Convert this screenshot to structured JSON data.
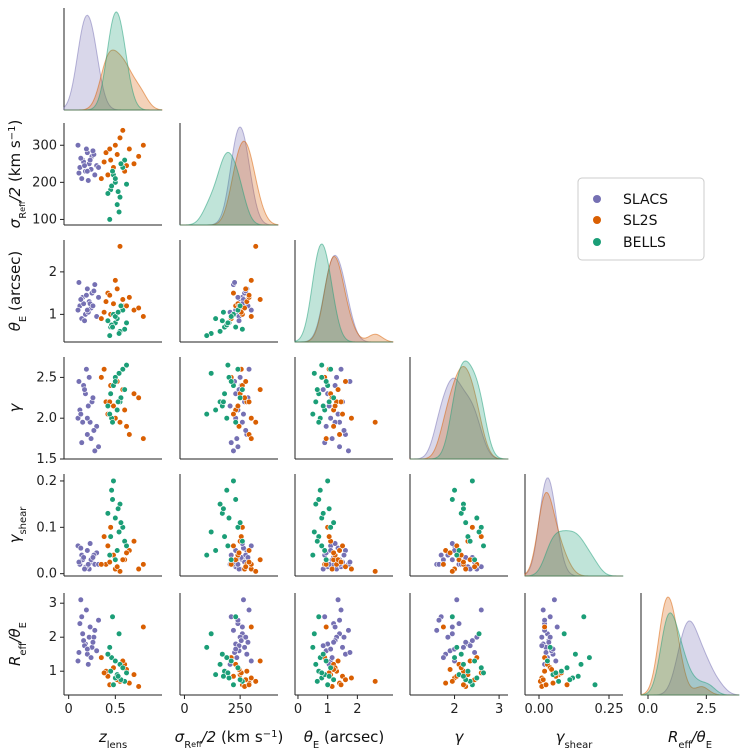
{
  "chart_data": {
    "type": "scatter",
    "title": "",
    "kind": "corner pair plot with KDE diagonals",
    "legend": {
      "placement": "right",
      "entries": [
        "SLACS",
        "SL2S",
        "BELLS"
      ]
    },
    "colors": {
      "SLACS": "#7570b3",
      "SL2S": "#d95f02",
      "BELLS": "#1b9e77"
    },
    "variables": [
      {
        "key": "z",
        "label_base": "z",
        "label_sub": "lens",
        "range": [
          -0.05,
          1.0
        ],
        "ticks": [
          0,
          0.5
        ],
        "tick_labels": [
          "0",
          "0.5"
        ]
      },
      {
        "key": "sigma",
        "label_base": "σ",
        "label_sub": "R",
        "label_subsub": "eff",
        "label_after": "/2",
        "label_unit": " (km s",
        "label_sup": "−1",
        "label_close": ")",
        "range": [
          -20,
          420
        ],
        "ticks": [
          0,
          250
        ],
        "tick_labels": [
          "0",
          "250"
        ],
        "ytick_values": [
          100,
          200,
          300
        ],
        "ytick_labels": [
          "100",
          "200",
          "300"
        ],
        "yrange": [
          85,
          360
        ]
      },
      {
        "key": "theta",
        "label_base": "θ",
        "label_sub": "E",
        "label_unit": " (arcsec)",
        "range": [
          -0.1,
          3.2
        ],
        "ticks": [
          0,
          1,
          2
        ],
        "tick_labels": [
          "0",
          "1",
          "2"
        ],
        "ytick_values": [
          1,
          2
        ],
        "ytick_labels": [
          "1",
          "2"
        ],
        "yrange": [
          0.35,
          2.75
        ]
      },
      {
        "key": "gamma",
        "label_base": "γ",
        "range": [
          1.0,
          3.2
        ],
        "ticks": [
          2,
          3
        ],
        "tick_labels": [
          "2",
          "3"
        ],
        "ytick_values": [
          1.5,
          2.0,
          2.5
        ],
        "ytick_labels": [
          "1.5",
          "2.0",
          "2.5"
        ],
        "yrange": [
          1.5,
          2.75
        ]
      },
      {
        "key": "shear",
        "label_base": "γ",
        "label_sub": "shear",
        "range": [
          -0.05,
          0.3
        ],
        "ticks": [
          0.0,
          0.25
        ],
        "tick_labels": [
          "0.00",
          "0.25"
        ],
        "ytick_values": [
          0.0,
          0.1,
          0.2
        ],
        "ytick_labels": [
          "0.0",
          "0.1",
          "0.2"
        ],
        "yrange": [
          -0.005,
          0.215
        ]
      },
      {
        "key": "ratio",
        "label_base": "R",
        "label_sub": "eff",
        "label_after": "/θ",
        "label_sub2": "E",
        "range": [
          -0.3,
          3.9
        ],
        "ticks": [
          0.0,
          2.5
        ],
        "tick_labels": [
          "0.0",
          "2.5"
        ],
        "ytick_values": [
          1,
          2,
          3
        ],
        "ytick_labels": [
          "1",
          "2",
          "3"
        ],
        "yrange": [
          0.3,
          3.3
        ]
      }
    ],
    "series": [
      {
        "name": "SLACS",
        "points": [
          [
            0.12,
            240,
            1.2,
            2.1,
            0.02,
            2.4
          ],
          [
            0.15,
            260,
            1.4,
            1.95,
            0.03,
            2.1
          ],
          [
            0.18,
            230,
            1.0,
            2.3,
            0.015,
            1.8
          ],
          [
            0.2,
            280,
            1.6,
            1.8,
            0.05,
            1.5
          ],
          [
            0.22,
            250,
            1.3,
            2.5,
            0.01,
            2.0
          ],
          [
            0.14,
            210,
            0.9,
            1.7,
            0.04,
            2.6
          ],
          [
            0.25,
            270,
            1.5,
            2.2,
            0.025,
            1.7
          ],
          [
            0.1,
            300,
            1.1,
            2.0,
            0.06,
            1.3
          ],
          [
            0.28,
            220,
            1.7,
            1.6,
            0.02,
            2.2
          ],
          [
            0.16,
            255,
            1.25,
            2.4,
            0.035,
            1.9
          ],
          [
            0.3,
            245,
            0.95,
            1.9,
            0.045,
            1.6
          ],
          [
            0.19,
            290,
            1.45,
            2.6,
            0.015,
            2.8
          ],
          [
            0.24,
            235,
            1.15,
            1.75,
            0.03,
            1.4
          ],
          [
            0.13,
            265,
            1.35,
            2.05,
            0.055,
            3.1
          ],
          [
            0.21,
            205,
            1.05,
            2.15,
            0.02,
            1.2
          ],
          [
            0.27,
            275,
            1.55,
            1.85,
            0.04,
            2.0
          ],
          [
            0.17,
            245,
            0.85,
            2.35,
            0.01,
            1.75
          ],
          [
            0.23,
            260,
            1.25,
            1.95,
            0.065,
            2.3
          ],
          [
            0.11,
            225,
            1.75,
            2.45,
            0.025,
            1.55
          ],
          [
            0.26,
            285,
            1.2,
            2.25,
            0.035,
            1.85
          ],
          [
            0.32,
            240,
            1.4,
            1.65,
            0.02,
            2.5
          ],
          [
            0.2,
            230,
            1.1,
            2.0,
            0.05,
            1.65
          ]
        ]
      },
      {
        "name": "SL2S",
        "points": [
          [
            0.4,
            280,
            1.3,
            2.2,
            0.02,
            1.0
          ],
          [
            0.5,
            300,
            1.8,
            2.0,
            0.01,
            0.8
          ],
          [
            0.45,
            260,
            1.0,
            2.4,
            0.1,
            0.6
          ],
          [
            0.6,
            230,
            1.2,
            2.1,
            0.03,
            1.2
          ],
          [
            0.55,
            320,
            2.6,
            1.95,
            0.005,
            0.7
          ],
          [
            0.7,
            250,
            1.1,
            2.3,
            0.07,
            0.9
          ],
          [
            0.35,
            210,
            0.9,
            2.5,
            0.02,
            1.4
          ],
          [
            0.65,
            290,
            1.4,
            1.8,
            0.05,
            0.65
          ],
          [
            0.48,
            240,
            1.25,
            2.15,
            0.04,
            1.1
          ],
          [
            0.75,
            270,
            1.15,
            2.25,
            0.01,
            0.55
          ],
          [
            0.42,
            220,
            1.5,
            2.05,
            0.06,
            0.85
          ],
          [
            0.58,
            340,
            1.35,
            2.35,
            0.03,
            1.3
          ],
          [
            0.8,
            300,
            0.95,
            1.75,
            0.02,
            2.3
          ],
          [
            0.38,
            255,
            1.05,
            2.6,
            0.08,
            0.95
          ],
          [
            0.52,
            275,
            1.6,
            2.45,
            0.015,
            0.75
          ],
          [
            0.62,
            245,
            1.2,
            1.9,
            0.045,
            1.05
          ],
          [
            0.44,
            290,
            1.45,
            2.2,
            0.025,
            0.6
          ]
        ]
      },
      {
        "name": "BELLS",
        "points": [
          [
            0.45,
            180,
            0.7,
            2.3,
            0.08,
            1.0
          ],
          [
            0.5,
            200,
            0.8,
            2.5,
            0.12,
            0.8
          ],
          [
            0.55,
            160,
            0.6,
            2.2,
            0.15,
            1.2
          ],
          [
            0.48,
            220,
            1.0,
            2.4,
            0.2,
            0.6
          ],
          [
            0.52,
            140,
            0.9,
            2.1,
            0.05,
            0.9
          ],
          [
            0.58,
            240,
            1.1,
            2.6,
            0.1,
            1.1
          ],
          [
            0.46,
            190,
            0.75,
            2.0,
            0.18,
            1.4
          ],
          [
            0.6,
            260,
            0.65,
            2.35,
            0.07,
            0.7
          ],
          [
            0.42,
            170,
            0.85,
            2.15,
            0.13,
            1.5
          ],
          [
            0.54,
            120,
            0.55,
            2.55,
            0.09,
            2.1
          ],
          [
            0.5,
            210,
            0.95,
            2.45,
            0.03,
            1.3
          ],
          [
            0.56,
            250,
            1.2,
            2.25,
            0.11,
            0.75
          ],
          [
            0.47,
            230,
            0.7,
            1.95,
            0.16,
            2.6
          ],
          [
            0.62,
            195,
            0.8,
            2.65,
            0.06,
            0.95
          ],
          [
            0.44,
            100,
            0.5,
            2.05,
            0.04,
            1.7
          ],
          [
            0.53,
            175,
            1.05,
            2.2,
            0.14,
            0.85
          ]
        ]
      }
    ],
    "kde_note": "diagonal panels show kernel density estimates per survey"
  }
}
